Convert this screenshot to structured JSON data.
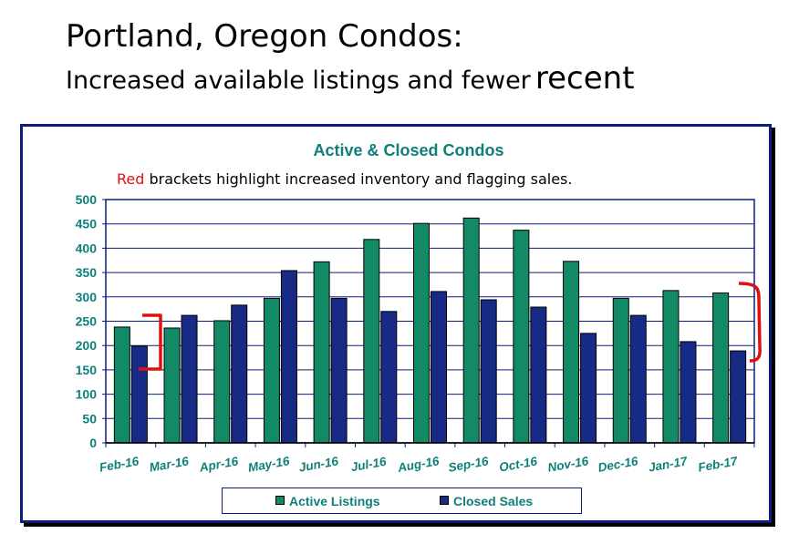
{
  "slide": {
    "title": "Portland, Oregon Condos:",
    "subtitle_part1": "Increased available listings and fewer",
    "subtitle_part2": "recent"
  },
  "colors": {
    "active": "#138a66",
    "closed": "#172b86",
    "frame": "#0b1f7a",
    "title": "#0e7f7a",
    "note_red": "#e01010",
    "bracket": "#e01010"
  },
  "chart_data": {
    "type": "bar",
    "title": "Active & Closed Condos",
    "note_red": "Red",
    "note_rest": " brackets highlight increased inventory and flagging sales.",
    "categories": [
      "Feb-16",
      "Mar-16",
      "Apr-16",
      "May-16",
      "Jun-16",
      "Jul-16",
      "Aug-16",
      "Sep-16",
      "Oct-16",
      "Nov-16",
      "Dec-16",
      "Jan-17",
      "Feb-17"
    ],
    "series": [
      {
        "name": "Active Listings",
        "values": [
          238,
          236,
          251,
          297,
          372,
          418,
          451,
          462,
          437,
          373,
          297,
          313,
          308
        ]
      },
      {
        "name": "Closed Sales",
        "values": [
          199,
          262,
          283,
          354,
          297,
          270,
          311,
          294,
          279,
          225,
          262,
          208,
          189
        ]
      }
    ],
    "ylim": [
      0,
      500
    ],
    "yticks": [
      0,
      50,
      100,
      150,
      200,
      250,
      300,
      350,
      400,
      450,
      500
    ],
    "grid": true,
    "legend": "bottom"
  }
}
